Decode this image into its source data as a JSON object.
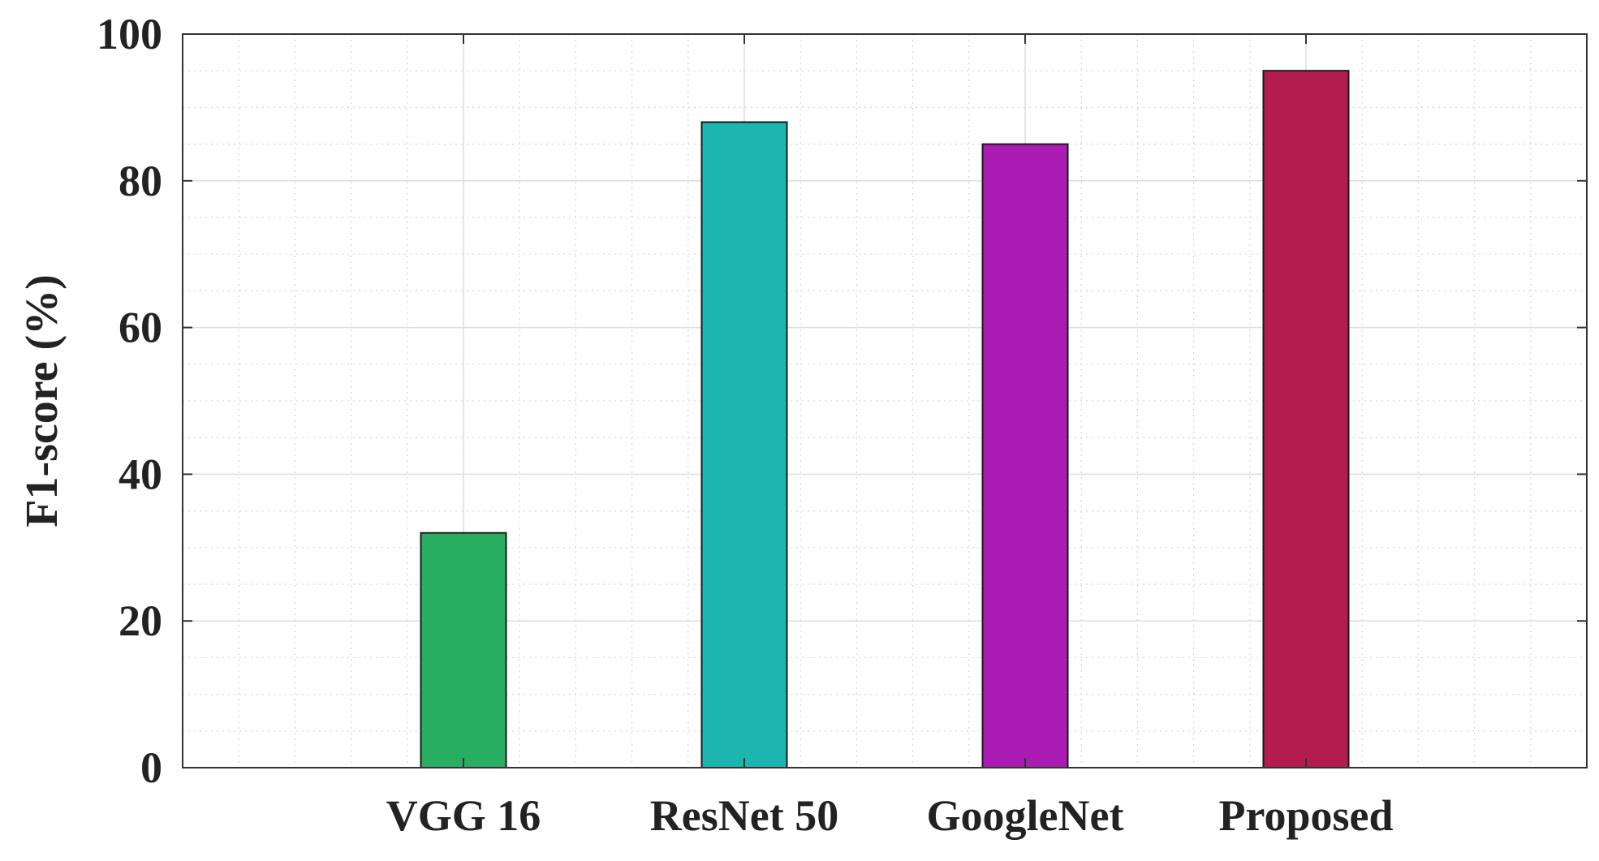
{
  "chart_data": {
    "type": "bar",
    "title": "",
    "xlabel": "",
    "ylabel": "F1-score (%)",
    "categories": [
      "VGG 16",
      "ResNet 50",
      "GoogleNet",
      "Proposed"
    ],
    "values": [
      32,
      88,
      85,
      95
    ],
    "colors": [
      "#27ae60",
      "#1cb5b0",
      "#ab1cb5",
      "#b31c4e"
    ],
    "ylim": [
      0,
      100
    ],
    "yticks": [
      0,
      20,
      40,
      60,
      80,
      100
    ],
    "ytick_labels": [
      "0",
      "20",
      "40",
      "60",
      "80",
      "100"
    ],
    "grid": "major and minor",
    "legend": "none"
  }
}
